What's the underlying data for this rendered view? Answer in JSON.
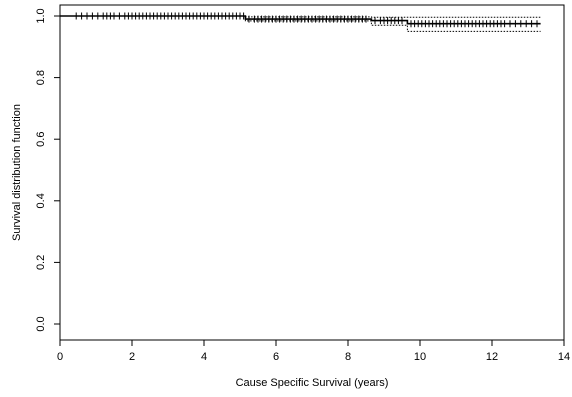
{
  "chart_data": {
    "type": "line",
    "title": "",
    "xlabel": "Cause Specific Survival (years)",
    "ylabel": "Survival distribution function",
    "xlim": [
      0,
      14
    ],
    "ylim": [
      0,
      1
    ],
    "x_ticks": [
      0,
      2,
      4,
      6,
      8,
      10,
      12,
      14
    ],
    "x_tick_labels": [
      "0",
      "2",
      "4",
      "6",
      "8",
      "10",
      "12",
      "14"
    ],
    "y_ticks": [
      0,
      0.2,
      0.4,
      0.6,
      0.8,
      1
    ],
    "y_tick_labels": [
      "0.0",
      "0.2",
      "0.4",
      "0.6",
      "0.8",
      "1.0"
    ],
    "grid": false,
    "legend": "none",
    "series": [
      {
        "role": "estimate",
        "line_style": "solid",
        "x": [
          0,
          5.15,
          5.15,
          8.65,
          8.65,
          9.65,
          9.65,
          13.35
        ],
        "y": [
          1.0,
          1.0,
          0.99,
          0.99,
          0.985,
          0.985,
          0.975,
          0.975
        ]
      },
      {
        "role": "upper-confidence-band",
        "line_style": "dotted",
        "x": [
          0,
          5.15,
          5.15,
          8.65,
          8.65,
          9.65,
          9.65,
          13.35
        ],
        "y": [
          1.0,
          1.0,
          0.997,
          0.997,
          0.996,
          0.996,
          0.996,
          0.996
        ]
      },
      {
        "role": "lower-confidence-band",
        "line_style": "dotted",
        "x": [
          0,
          5.15,
          5.15,
          8.65,
          8.65,
          9.65,
          9.65,
          13.35
        ],
        "y": [
          1.0,
          1.0,
          0.984,
          0.984,
          0.97,
          0.97,
          0.95,
          0.95
        ]
      }
    ],
    "censor_marks": {
      "marker": "+",
      "x": [
        0.45,
        0.6,
        0.75,
        0.9,
        1.05,
        1.2,
        1.3,
        1.4,
        1.5,
        1.65,
        1.8,
        1.9,
        2.0,
        2.1,
        2.2,
        2.3,
        2.4,
        2.5,
        2.6,
        2.7,
        2.8,
        2.9,
        3.0,
        3.1,
        3.2,
        3.3,
        3.4,
        3.5,
        3.6,
        3.7,
        3.8,
        3.9,
        4.0,
        4.1,
        4.2,
        4.3,
        4.4,
        4.5,
        4.6,
        4.7,
        4.8,
        4.9,
        5.0,
        5.1,
        5.25,
        5.4,
        5.5,
        5.6,
        5.7,
        5.8,
        5.9,
        6.0,
        6.1,
        6.2,
        6.3,
        6.4,
        6.5,
        6.6,
        6.7,
        6.8,
        6.9,
        7.0,
        7.1,
        7.2,
        7.3,
        7.4,
        7.5,
        7.6,
        7.7,
        7.8,
        7.9,
        8.0,
        8.1,
        8.2,
        8.3,
        8.4,
        8.5,
        8.75,
        8.9,
        9.0,
        9.1,
        9.2,
        9.3,
        9.4,
        9.5,
        9.75,
        9.85,
        9.95,
        10.05,
        10.15,
        10.25,
        10.35,
        10.45,
        10.55,
        10.65,
        10.75,
        10.85,
        10.95,
        11.05,
        11.15,
        11.25,
        11.35,
        11.45,
        11.55,
        11.65,
        11.75,
        11.85,
        11.95,
        12.05,
        12.15,
        12.25,
        12.35,
        12.5,
        12.65,
        12.8,
        12.95,
        13.1,
        13.25
      ]
    }
  }
}
